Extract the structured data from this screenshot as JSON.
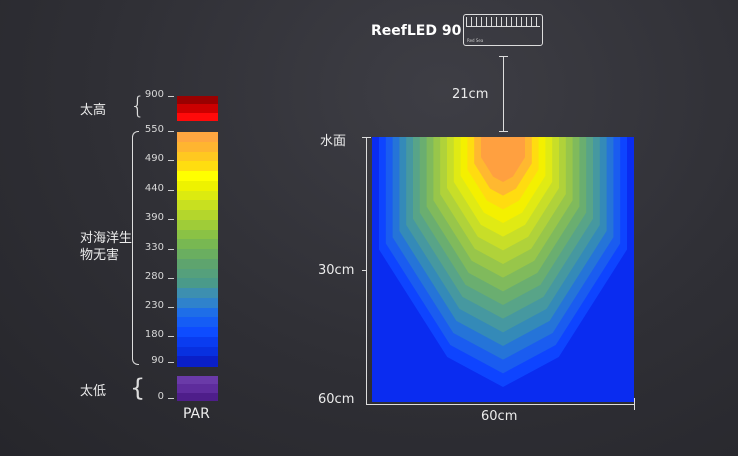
{
  "device": {
    "name": "ReefLED 90",
    "tag": "Red Sea"
  },
  "distance_label": "21cm",
  "depth_labels": {
    "surface": "水面",
    "mid": "30cm",
    "bottom": "60cm"
  },
  "width_label": "60cm",
  "legend": {
    "too_high": "太高",
    "safe": "对海洋生物无害",
    "too_low": "太低",
    "unit": "PAR",
    "ticks": [
      "900",
      "550",
      "490",
      "440",
      "390",
      "330",
      "280",
      "230",
      "180",
      "90",
      "0"
    ],
    "high_colors": [
      "#9a0000",
      "#cc0000",
      "#ff0a0a"
    ],
    "safe_colors": [
      "#ffa640",
      "#ffb530",
      "#ffc820",
      "#ffdd10",
      "#ffff00",
      "#eef200",
      "#dcea10",
      "#c8e020",
      "#b4d62c",
      "#9fcc38",
      "#8ac245",
      "#78b852",
      "#6aae60",
      "#5ea46e",
      "#55a07c",
      "#4a9a8a",
      "#3d8fb0",
      "#2f82cc",
      "#1e6ee8",
      "#155df5",
      "#0e4cff",
      "#0a3cf0",
      "#0830e0",
      "#0a1fc8"
    ],
    "low_colors": [
      "#6a3aa8",
      "#5e2c9c",
      "#4e1e8a"
    ]
  },
  "heatmap_colors": [
    "#0a2cf0",
    "#0e44ff",
    "#1a5cf0",
    "#2574d8",
    "#348ab8",
    "#4698a0",
    "#58a488",
    "#6aae70",
    "#80ba5c",
    "#98c64a",
    "#b0d23a",
    "#c8de28",
    "#e0ea14",
    "#f4f000",
    "#ffdc10",
    "#ffb830",
    "#ffa040"
  ]
}
